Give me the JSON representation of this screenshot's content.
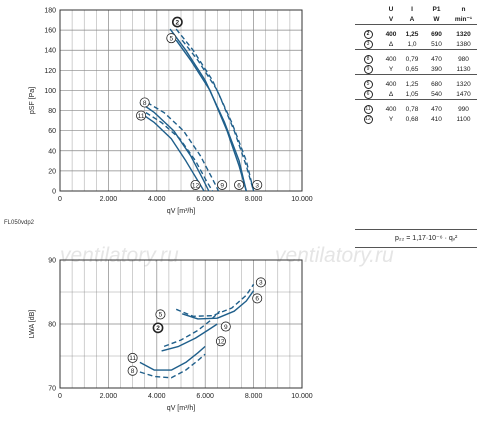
{
  "watermark": "ventilatory.ru",
  "reference_code": "FL050vdp2",
  "formula": "p₂₂ = 1,17·10⁻⁶ · qᵥ²",
  "table": {
    "headers": [
      "",
      "U",
      "I",
      "P1",
      "n"
    ],
    "units": [
      "",
      "V",
      "A",
      "W",
      "min⁻¹"
    ],
    "groups": [
      [
        {
          "curve": "2",
          "conn": "400",
          "U": "400",
          "I": "1,25",
          "P1": "690",
          "n": "1320",
          "bold": true
        },
        {
          "curve": "3",
          "conn": "Δ",
          "U": "Δ",
          "I": "1,0",
          "P1": "510",
          "n": "1380",
          "bold": false
        }
      ],
      [
        {
          "curve": "8",
          "U": "400",
          "I": "0,79",
          "P1": "470",
          "n": "980",
          "bold": false
        },
        {
          "curve": "9",
          "U": "Y",
          "I": "0,65",
          "P1": "390",
          "n": "1130",
          "bold": false
        }
      ],
      [
        {
          "curve": "5",
          "U": "400",
          "I": "1,25",
          "P1": "680",
          "n": "1320",
          "bold": false
        },
        {
          "curve": "6",
          "U": "Δ",
          "I": "1,05",
          "P1": "540",
          "n": "1470",
          "bold": false
        }
      ],
      [
        {
          "curve": "11",
          "U": "400",
          "I": "0,78",
          "P1": "470",
          "n": "990",
          "bold": false
        },
        {
          "curve": "12",
          "U": "Y",
          "I": "0,68",
          "P1": "410",
          "n": "1100",
          "bold": false
        }
      ]
    ]
  },
  "chart_data": [
    {
      "type": "line",
      "xlabel": "qV [m³/h]",
      "ylabel": "pSF [Pa]",
      "xlim": [
        0,
        10000
      ],
      "ylim": [
        0,
        180
      ],
      "xticks": [
        "0",
        "2.000",
        "4.000",
        "6.000",
        "8.000",
        "10.000"
      ],
      "yticks": [
        "0",
        "20",
        "40",
        "60",
        "80",
        "100",
        "120",
        "140",
        "160",
        "180"
      ],
      "series": [
        {
          "name": "2",
          "style": "solid",
          "x": [
            4550,
            5200,
            6000,
            6800,
            7400,
            7700
          ],
          "y": [
            161,
            140,
            110,
            68,
            30,
            0
          ]
        },
        {
          "name": "3",
          "style": "dashed",
          "x": [
            4800,
            5500,
            6300,
            7100,
            7700,
            8000
          ],
          "y": [
            161,
            140,
            110,
            68,
            30,
            0
          ]
        },
        {
          "name": "5",
          "style": "solid",
          "x": [
            4800,
            5400,
            6200,
            6900,
            7400,
            7700
          ],
          "y": [
            150,
            130,
            100,
            60,
            25,
            0
          ]
        },
        {
          "name": "6",
          "style": "dashed",
          "x": [
            5050,
            5700,
            6500,
            7200,
            7700,
            8000
          ],
          "y": [
            150,
            130,
            100,
            60,
            25,
            0
          ]
        },
        {
          "name": "8",
          "style": "solid",
          "x": [
            3300,
            3900,
            4700,
            5400,
            5900,
            6150
          ],
          "y": [
            88,
            78,
            60,
            35,
            12,
            0
          ]
        },
        {
          "name": "9",
          "style": "dashed",
          "x": [
            3600,
            4300,
            5100,
            5800,
            6300,
            6550
          ],
          "y": [
            88,
            78,
            60,
            35,
            12,
            0
          ]
        },
        {
          "name": "11",
          "style": "solid",
          "x": [
            3300,
            3900,
            4600,
            5200,
            5700,
            5950
          ],
          "y": [
            78,
            68,
            52,
            30,
            10,
            0
          ]
        },
        {
          "name": "12",
          "style": "dashed",
          "x": [
            3550,
            4200,
            4950,
            5600,
            6050,
            6300
          ],
          "y": [
            78,
            68,
            52,
            30,
            10,
            0
          ]
        }
      ]
    },
    {
      "type": "line",
      "xlabel": "qV [m³/h]",
      "ylabel": "LWA [dB]",
      "xlim": [
        0,
        10000
      ],
      "ylim": [
        70,
        90
      ],
      "xticks": [
        "0",
        "2.000",
        "4.000",
        "6.000",
        "8.000",
        "10.000"
      ],
      "yticks": [
        "70",
        "80",
        "90"
      ],
      "series": [
        {
          "name": "3",
          "style": "dashed",
          "x": [
            4800,
            5500,
            6300,
            7100,
            7700,
            8000
          ],
          "y": [
            82.3,
            81.2,
            81.3,
            82.5,
            84.5,
            86.2
          ]
        },
        {
          "name": "6",
          "style": "solid",
          "x": [
            5050,
            5700,
            6500,
            7200,
            7700,
            8000
          ],
          "y": [
            81.6,
            80.8,
            80.9,
            82.0,
            83.6,
            85.2
          ]
        },
        {
          "name": "9",
          "style": "dashed",
          "x": [
            4300,
            5000,
            5700,
            6200,
            6600
          ],
          "y": [
            76.5,
            77.5,
            79.0,
            80.5,
            82.0
          ]
        },
        {
          "name": "12",
          "style": "solid",
          "x": [
            4200,
            4900,
            5600,
            6100,
            6500
          ],
          "y": [
            75.8,
            76.5,
            77.8,
            79.0,
            80.0
          ]
        },
        {
          "name": "11",
          "style": "solid",
          "x": [
            3300,
            3900,
            4600,
            5200,
            5700,
            6000
          ],
          "y": [
            74.0,
            72.8,
            72.8,
            74.0,
            75.5,
            76.5
          ]
        },
        {
          "name": "8",
          "style": "dashed",
          "x": [
            3300,
            3900,
            4600,
            5200,
            5700,
            6000
          ],
          "y": [
            72.5,
            71.8,
            71.6,
            72.8,
            74.3,
            75.3
          ]
        }
      ]
    }
  ]
}
